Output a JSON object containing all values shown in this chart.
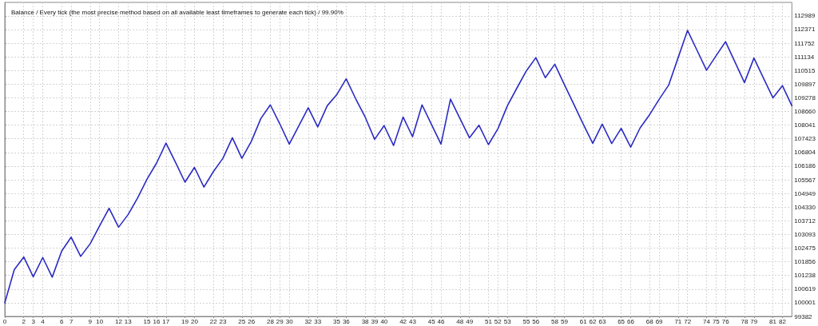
{
  "chart_data": {
    "type": "line",
    "title": "Balance / Every tick (the most precise method based on all available least timeframes to generate each tick) / 99.90%",
    "x": [
      0,
      1,
      2,
      3,
      4,
      5,
      6,
      7,
      8,
      9,
      10,
      11,
      12,
      13,
      14,
      15,
      16,
      17,
      18,
      19,
      20,
      21,
      22,
      23,
      24,
      25,
      26,
      27,
      28,
      29,
      30,
      31,
      32,
      33,
      34,
      35,
      36,
      37,
      38,
      39,
      40,
      41,
      42,
      43,
      44,
      45,
      46,
      47,
      48,
      49,
      50,
      51,
      52,
      53,
      54,
      55,
      56,
      57,
      58,
      59,
      60,
      61,
      62,
      63,
      64,
      65,
      66,
      67,
      68,
      69,
      70,
      71,
      72,
      73,
      74,
      75,
      76,
      77,
      78,
      79,
      80,
      81,
      82,
      83
    ],
    "series": [
      {
        "color": "#2b2bc4",
        "values": [
          100000,
          101500,
          102070,
          101180,
          102050,
          101160,
          102340,
          102970,
          102100,
          102670,
          103480,
          104280,
          103420,
          103990,
          104740,
          105600,
          106320,
          107230,
          106360,
          105460,
          106130,
          105240,
          105940,
          106540,
          107470,
          106540,
          107310,
          108340,
          108960,
          108100,
          107180,
          108010,
          108830,
          107960,
          108920,
          109420,
          110140,
          109240,
          108410,
          107400,
          108020,
          107120,
          108410,
          107520,
          108960,
          108070,
          107180,
          109220,
          108340,
          107470,
          108040,
          107160,
          107880,
          108920,
          109720,
          110500,
          111100,
          110190,
          110800,
          109890,
          108990,
          108090,
          107220,
          108090,
          107210,
          107900,
          107050,
          107920,
          108520,
          109210,
          109850,
          111090,
          112330,
          111430,
          110530,
          111180,
          111820,
          110900,
          109970,
          111080,
          110180,
          109280,
          109830,
          108920
        ]
      }
    ],
    "xlim": [
      0,
      83
    ],
    "xticks": [
      0,
      2,
      3,
      4,
      6,
      7,
      9,
      10,
      12,
      13,
      15,
      16,
      17,
      19,
      20,
      22,
      23,
      25,
      26,
      28,
      29,
      30,
      32,
      33,
      35,
      36,
      38,
      39,
      40,
      42,
      43,
      45,
      46,
      48,
      49,
      51,
      52,
      53,
      55,
      56,
      58,
      59,
      61,
      62,
      63,
      65,
      66,
      68,
      69,
      71,
      72,
      74,
      75,
      76,
      78,
      79,
      81,
      82
    ],
    "ylim": [
      99382,
      113600
    ],
    "yticks": [
      99382,
      100001,
      100619,
      101238,
      101856,
      102475,
      103093,
      103712,
      104330,
      104949,
      105567,
      106186,
      106804,
      107423,
      108041,
      108660,
      109278,
      109897,
      110515,
      111134,
      111752,
      112371,
      112989
    ],
    "grid": true,
    "line_style": "solid"
  }
}
